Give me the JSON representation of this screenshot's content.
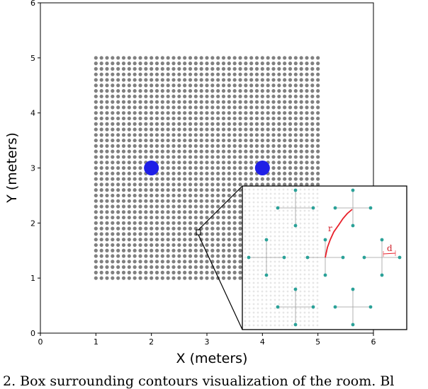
{
  "chart_data": {
    "type": "scatter",
    "xlabel": "X (meters)",
    "ylabel": "Y (meters)",
    "xlim": [
      0,
      6
    ],
    "ylim": [
      0,
      6
    ],
    "xticks": [
      "0",
      "1",
      "2",
      "3",
      "4",
      "5",
      "6"
    ],
    "yticks": [
      "0",
      "1",
      "2",
      "3",
      "4",
      "5",
      "6"
    ],
    "grid": false,
    "series": [
      {
        "marker": "grid-points",
        "color": "#808080",
        "x_range": [
          1,
          5
        ],
        "y_range": [
          1,
          5
        ],
        "spacing": 0.1
      },
      {
        "marker": "large-circle",
        "color": "#1f1fe6",
        "x": [
          2,
          4
        ],
        "y": [
          3,
          3
        ]
      }
    ],
    "zoom_inset": {
      "source_point": [
        2.85,
        1.8
      ],
      "labels": [
        "r",
        "d"
      ],
      "marker_color": "#2aa198",
      "line_color": "#e8202a"
    }
  },
  "caption": {
    "text": "2. Box surrounding contours visualization of the room. Bl"
  }
}
